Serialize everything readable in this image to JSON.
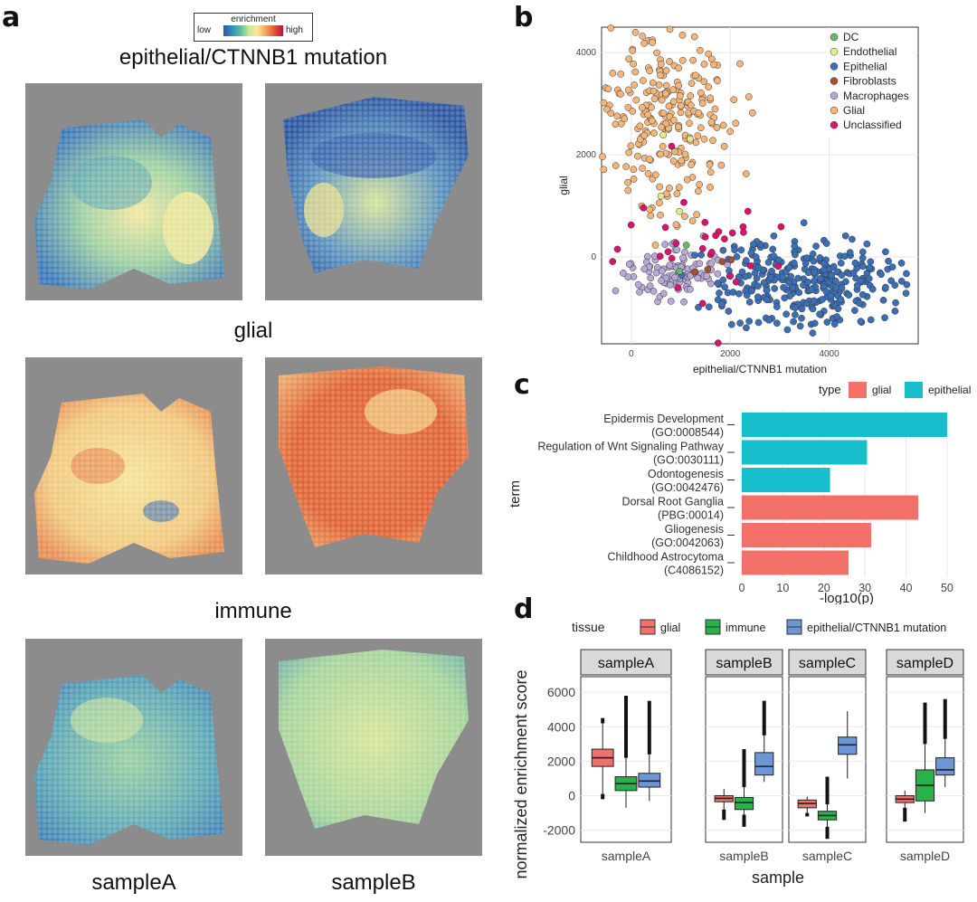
{
  "panels": {
    "a": "a",
    "b": "b",
    "c": "c",
    "d": "d"
  },
  "panel_a": {
    "legend": {
      "title": "enrichment",
      "low": "low",
      "high": "high"
    },
    "rows": [
      "epithelial/CTNNB1 mutation",
      "glial",
      "immune"
    ],
    "columns": [
      "sampleA",
      "sampleB"
    ]
  },
  "colors": {
    "DC": "#66b86a",
    "Endothelial": "#e8e88c",
    "Epithelial": "#3a6fb5",
    "Fibroblasts": "#a5522a",
    "Macrophages": "#b7a8d6",
    "Glial": "#f4b57a",
    "Unclassified": "#d8146e",
    "bar_glial": "#f37068",
    "bar_epithelial": "#17becb",
    "box_glial": "#f0706a",
    "box_immune": "#27b24a",
    "box_epi": "#6d96d6"
  },
  "chart_data": [
    {
      "type": "scatter",
      "xlabel": "epithelial/CTNNB1 mutation",
      "ylabel": "glial",
      "xlim": [
        -600,
        5800
      ],
      "ylim": [
        -1700,
        4500
      ],
      "xticks": [
        0,
        2000,
        4000
      ],
      "yticks": [
        0,
        2000,
        4000
      ],
      "xtick_labels": [
        "0",
        "2000",
        "4000"
      ],
      "ytick_labels": [
        "0",
        "2000",
        "4000"
      ],
      "grid": true,
      "legend_position": "top-right",
      "legend": [
        "DC",
        "Endothelial",
        "Epithelial",
        "Fibroblasts",
        "Macrophages",
        "Glial",
        "Unclassified"
      ],
      "series": [
        {
          "name": "Glial",
          "center": [
            700,
            2600
          ],
          "spread": [
            600,
            800
          ],
          "approx_n": 700
        },
        {
          "name": "Epithelial",
          "center": [
            3500,
            -500
          ],
          "spread": [
            900,
            450
          ],
          "approx_n": 900
        },
        {
          "name": "Macrophages",
          "center": [
            900,
            -300
          ],
          "spread": [
            500,
            250
          ],
          "approx_n": 300
        },
        {
          "name": "Unclassified",
          "center": [
            1400,
            400
          ],
          "spread": [
            800,
            900
          ],
          "approx_n": 90
        },
        {
          "name": "Fibroblasts",
          "center": [
            1500,
            -200
          ],
          "spread": [
            400,
            200
          ],
          "approx_n": 10
        },
        {
          "name": "Endothelial",
          "center": [
            800,
            1500
          ],
          "spread": [
            400,
            600
          ],
          "approx_n": 10
        },
        {
          "name": "DC",
          "center": [
            900,
            0
          ],
          "spread": [
            300,
            300
          ],
          "approx_n": 5
        }
      ]
    },
    {
      "type": "bar",
      "orientation": "horizontal",
      "legend_title": "type",
      "legend": [
        "glial",
        "epithelial"
      ],
      "ylabel": "term",
      "xlabel": "-log10(p)",
      "xlim": [
        0,
        52
      ],
      "xticks": [
        "0",
        "10",
        "20",
        "30",
        "40",
        "50"
      ],
      "categories": [
        {
          "line1": "Epidermis Development",
          "line2": "(GO:0008544)",
          "type": "epithelial",
          "value": 50
        },
        {
          "line1": "Regulation of Wnt Signaling Pathway",
          "line2": "(GO:0030111)",
          "type": "epithelial",
          "value": 30.5
        },
        {
          "line1": "Odontogenesis",
          "line2": "(GO:0042476)",
          "type": "epithelial",
          "value": 21.5
        },
        {
          "line1": "Dorsal Root Ganglia",
          "line2": "(PBG:00014)",
          "type": "glial",
          "value": 43
        },
        {
          "line1": "Gliogenesis",
          "line2": "(GO:0042063)",
          "type": "glial",
          "value": 31.5
        },
        {
          "line1": "Childhood Astrocytoma",
          "line2": "(C4086152)",
          "type": "glial",
          "value": 26
        }
      ]
    },
    {
      "type": "box",
      "legend_title": "tissue",
      "legend": [
        "glial",
        "immune",
        "epithelial/CTNNB1 mutation"
      ],
      "xlabel": "sample",
      "ylabel": "normalized enrichment score",
      "ylim": [
        -2700,
        6900
      ],
      "yticks": [
        "-2000",
        "0",
        "2000",
        "4000",
        "6000"
      ],
      "facets": [
        {
          "name": "sampleA",
          "boxes": [
            {
              "series": "glial",
              "q1": 1700,
              "median": 2200,
              "q3": 2700,
              "lo": 100,
              "hi": 4200,
              "out_lo": -200,
              "out_hi": 4500
            },
            {
              "series": "immune",
              "q1": 300,
              "median": 700,
              "q3": 1100,
              "lo": -700,
              "hi": 2200,
              "out_lo": -700,
              "out_hi": 5800
            },
            {
              "series": "epithelial/CTNNB1 mutation",
              "q1": 500,
              "median": 850,
              "q3": 1300,
              "lo": -300,
              "hi": 2400,
              "out_lo": -300,
              "out_hi": 5500
            }
          ]
        },
        {
          "name": "sampleB",
          "boxes": [
            {
              "series": "glial",
              "q1": -350,
              "median": -150,
              "q3": 0,
              "lo": -800,
              "hi": 400,
              "out_lo": -1400,
              "out_hi": 400
            },
            {
              "series": "immune",
              "q1": -800,
              "median": -400,
              "q3": -100,
              "lo": -1100,
              "hi": 500,
              "out_lo": -1800,
              "out_hi": 2700
            },
            {
              "series": "epithelial/CTNNB1 mutation",
              "q1": 1200,
              "median": 1700,
              "q3": 2500,
              "lo": 800,
              "hi": 3500,
              "out_lo": 800,
              "out_hi": 5500
            }
          ]
        },
        {
          "name": "sampleC",
          "boxes": [
            {
              "series": "glial",
              "q1": -700,
              "median": -450,
              "q3": -250,
              "lo": -1000,
              "hi": -50,
              "out_lo": -1200,
              "out_hi": -50
            },
            {
              "series": "immune",
              "q1": -1400,
              "median": -1150,
              "q3": -900,
              "lo": -1800,
              "hi": -500,
              "out_lo": -2500,
              "out_hi": 1100
            },
            {
              "series": "epithelial/CTNNB1 mutation",
              "q1": 2400,
              "median": 2950,
              "q3": 3400,
              "lo": 1000,
              "hi": 4900,
              "out_lo": 1000,
              "out_hi": 4900
            }
          ]
        },
        {
          "name": "sampleD",
          "boxes": [
            {
              "series": "glial",
              "q1": -400,
              "median": -200,
              "q3": 0,
              "lo": -700,
              "hi": 300,
              "out_lo": -1500,
              "out_hi": 300
            },
            {
              "series": "immune",
              "q1": -300,
              "median": 600,
              "q3": 1500,
              "lo": -1000,
              "hi": 3000,
              "out_lo": -1000,
              "out_hi": 5400
            },
            {
              "series": "epithelial/CTNNB1 mutation",
              "q1": 1200,
              "median": 1500,
              "q3": 2200,
              "lo": 500,
              "hi": 3300,
              "out_lo": 500,
              "out_hi": 5600
            }
          ]
        }
      ]
    }
  ]
}
